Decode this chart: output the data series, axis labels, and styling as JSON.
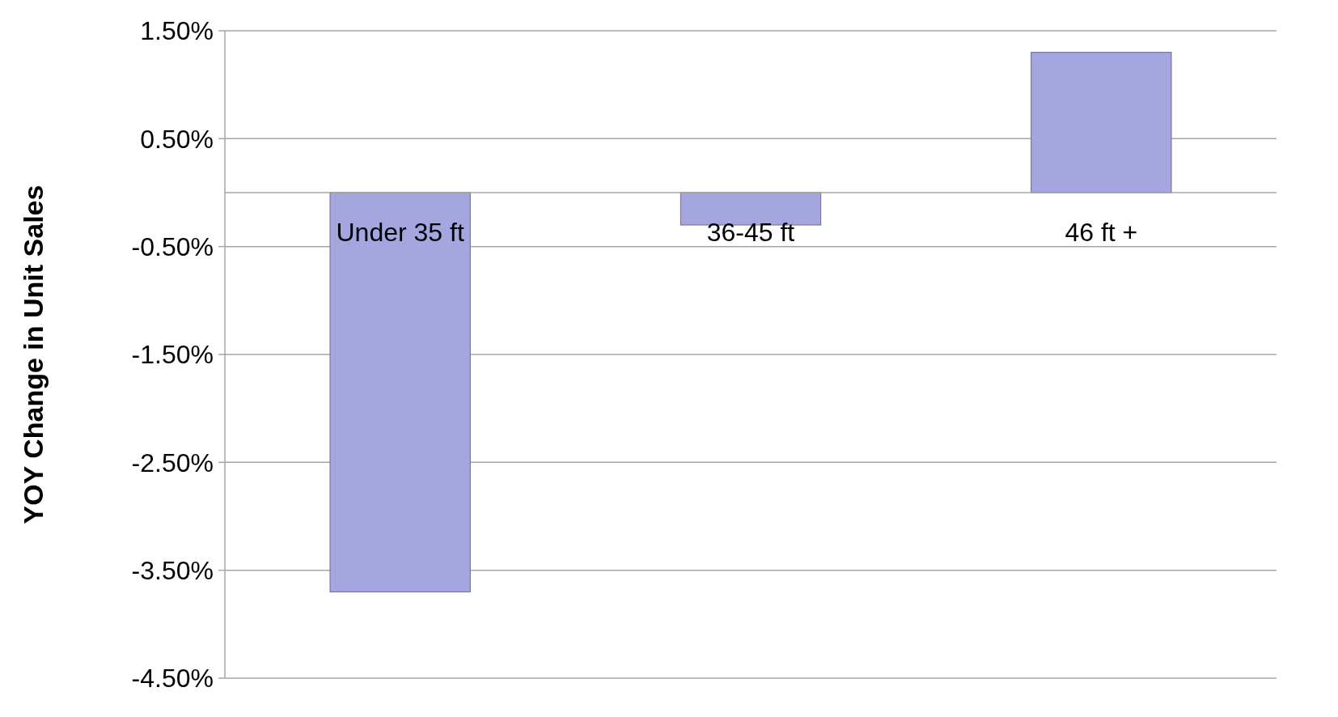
{
  "chart_data": {
    "type": "bar",
    "ylabel": "YOY Change in Unit Sales",
    "categories": [
      "Under 35 ft",
      "36-45 ft",
      "46 ft +"
    ],
    "values": [
      -3.7,
      -0.3,
      1.3
    ],
    "color": "#a5a5e0",
    "ylim": [
      -4.5,
      1.5
    ],
    "yticks": [
      {
        "value": -4.5,
        "label": "-4.50%"
      },
      {
        "value": -3.5,
        "label": "-3.50%"
      },
      {
        "value": -2.5,
        "label": "-2.50%"
      },
      {
        "value": -1.5,
        "label": "-1.50%"
      },
      {
        "value": -0.5,
        "label": "-0.50%"
      },
      {
        "value": 0.5,
        "label": "0.50%"
      },
      {
        "value": 1.5,
        "label": "1.50%"
      }
    ],
    "grid": true
  }
}
